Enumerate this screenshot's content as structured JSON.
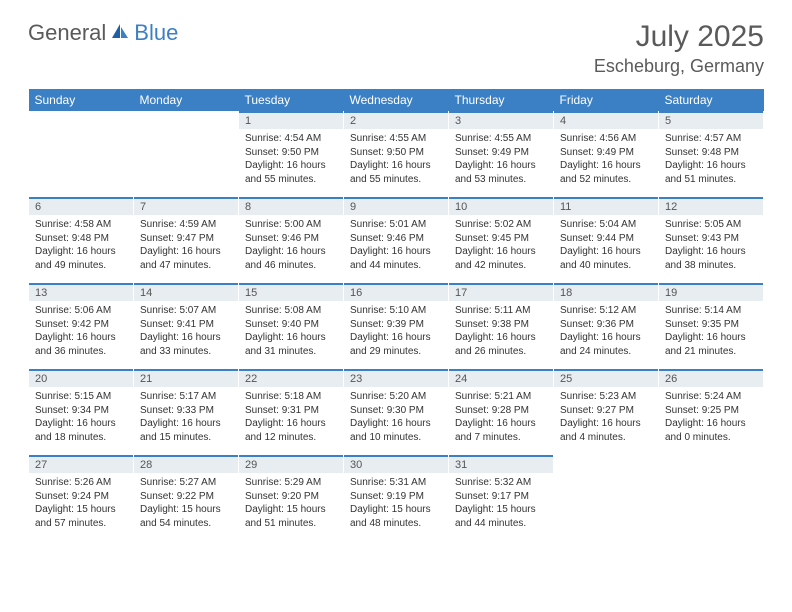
{
  "brand": {
    "part1": "General",
    "part2": "Blue"
  },
  "title": "July 2025",
  "location": "Escheburg, Germany",
  "colors": {
    "header_bg": "#3b7fc4",
    "header_text": "#ffffff",
    "daynum_bg": "#e8edf1",
    "daynum_border": "#3b7fc4",
    "body_text": "#333333",
    "title_text": "#5a5a5a"
  },
  "day_headers": [
    "Sunday",
    "Monday",
    "Tuesday",
    "Wednesday",
    "Thursday",
    "Friday",
    "Saturday"
  ],
  "weeks": [
    [
      null,
      null,
      {
        "n": "1",
        "sr": "Sunrise: 4:54 AM",
        "ss": "Sunset: 9:50 PM",
        "dl1": "Daylight: 16 hours",
        "dl2": "and 55 minutes."
      },
      {
        "n": "2",
        "sr": "Sunrise: 4:55 AM",
        "ss": "Sunset: 9:50 PM",
        "dl1": "Daylight: 16 hours",
        "dl2": "and 55 minutes."
      },
      {
        "n": "3",
        "sr": "Sunrise: 4:55 AM",
        "ss": "Sunset: 9:49 PM",
        "dl1": "Daylight: 16 hours",
        "dl2": "and 53 minutes."
      },
      {
        "n": "4",
        "sr": "Sunrise: 4:56 AM",
        "ss": "Sunset: 9:49 PM",
        "dl1": "Daylight: 16 hours",
        "dl2": "and 52 minutes."
      },
      {
        "n": "5",
        "sr": "Sunrise: 4:57 AM",
        "ss": "Sunset: 9:48 PM",
        "dl1": "Daylight: 16 hours",
        "dl2": "and 51 minutes."
      }
    ],
    [
      {
        "n": "6",
        "sr": "Sunrise: 4:58 AM",
        "ss": "Sunset: 9:48 PM",
        "dl1": "Daylight: 16 hours",
        "dl2": "and 49 minutes."
      },
      {
        "n": "7",
        "sr": "Sunrise: 4:59 AM",
        "ss": "Sunset: 9:47 PM",
        "dl1": "Daylight: 16 hours",
        "dl2": "and 47 minutes."
      },
      {
        "n": "8",
        "sr": "Sunrise: 5:00 AM",
        "ss": "Sunset: 9:46 PM",
        "dl1": "Daylight: 16 hours",
        "dl2": "and 46 minutes."
      },
      {
        "n": "9",
        "sr": "Sunrise: 5:01 AM",
        "ss": "Sunset: 9:46 PM",
        "dl1": "Daylight: 16 hours",
        "dl2": "and 44 minutes."
      },
      {
        "n": "10",
        "sr": "Sunrise: 5:02 AM",
        "ss": "Sunset: 9:45 PM",
        "dl1": "Daylight: 16 hours",
        "dl2": "and 42 minutes."
      },
      {
        "n": "11",
        "sr": "Sunrise: 5:04 AM",
        "ss": "Sunset: 9:44 PM",
        "dl1": "Daylight: 16 hours",
        "dl2": "and 40 minutes."
      },
      {
        "n": "12",
        "sr": "Sunrise: 5:05 AM",
        "ss": "Sunset: 9:43 PM",
        "dl1": "Daylight: 16 hours",
        "dl2": "and 38 minutes."
      }
    ],
    [
      {
        "n": "13",
        "sr": "Sunrise: 5:06 AM",
        "ss": "Sunset: 9:42 PM",
        "dl1": "Daylight: 16 hours",
        "dl2": "and 36 minutes."
      },
      {
        "n": "14",
        "sr": "Sunrise: 5:07 AM",
        "ss": "Sunset: 9:41 PM",
        "dl1": "Daylight: 16 hours",
        "dl2": "and 33 minutes."
      },
      {
        "n": "15",
        "sr": "Sunrise: 5:08 AM",
        "ss": "Sunset: 9:40 PM",
        "dl1": "Daylight: 16 hours",
        "dl2": "and 31 minutes."
      },
      {
        "n": "16",
        "sr": "Sunrise: 5:10 AM",
        "ss": "Sunset: 9:39 PM",
        "dl1": "Daylight: 16 hours",
        "dl2": "and 29 minutes."
      },
      {
        "n": "17",
        "sr": "Sunrise: 5:11 AM",
        "ss": "Sunset: 9:38 PM",
        "dl1": "Daylight: 16 hours",
        "dl2": "and 26 minutes."
      },
      {
        "n": "18",
        "sr": "Sunrise: 5:12 AM",
        "ss": "Sunset: 9:36 PM",
        "dl1": "Daylight: 16 hours",
        "dl2": "and 24 minutes."
      },
      {
        "n": "19",
        "sr": "Sunrise: 5:14 AM",
        "ss": "Sunset: 9:35 PM",
        "dl1": "Daylight: 16 hours",
        "dl2": "and 21 minutes."
      }
    ],
    [
      {
        "n": "20",
        "sr": "Sunrise: 5:15 AM",
        "ss": "Sunset: 9:34 PM",
        "dl1": "Daylight: 16 hours",
        "dl2": "and 18 minutes."
      },
      {
        "n": "21",
        "sr": "Sunrise: 5:17 AM",
        "ss": "Sunset: 9:33 PM",
        "dl1": "Daylight: 16 hours",
        "dl2": "and 15 minutes."
      },
      {
        "n": "22",
        "sr": "Sunrise: 5:18 AM",
        "ss": "Sunset: 9:31 PM",
        "dl1": "Daylight: 16 hours",
        "dl2": "and 12 minutes."
      },
      {
        "n": "23",
        "sr": "Sunrise: 5:20 AM",
        "ss": "Sunset: 9:30 PM",
        "dl1": "Daylight: 16 hours",
        "dl2": "and 10 minutes."
      },
      {
        "n": "24",
        "sr": "Sunrise: 5:21 AM",
        "ss": "Sunset: 9:28 PM",
        "dl1": "Daylight: 16 hours",
        "dl2": "and 7 minutes."
      },
      {
        "n": "25",
        "sr": "Sunrise: 5:23 AM",
        "ss": "Sunset: 9:27 PM",
        "dl1": "Daylight: 16 hours",
        "dl2": "and 4 minutes."
      },
      {
        "n": "26",
        "sr": "Sunrise: 5:24 AM",
        "ss": "Sunset: 9:25 PM",
        "dl1": "Daylight: 16 hours",
        "dl2": "and 0 minutes."
      }
    ],
    [
      {
        "n": "27",
        "sr": "Sunrise: 5:26 AM",
        "ss": "Sunset: 9:24 PM",
        "dl1": "Daylight: 15 hours",
        "dl2": "and 57 minutes."
      },
      {
        "n": "28",
        "sr": "Sunrise: 5:27 AM",
        "ss": "Sunset: 9:22 PM",
        "dl1": "Daylight: 15 hours",
        "dl2": "and 54 minutes."
      },
      {
        "n": "29",
        "sr": "Sunrise: 5:29 AM",
        "ss": "Sunset: 9:20 PM",
        "dl1": "Daylight: 15 hours",
        "dl2": "and 51 minutes."
      },
      {
        "n": "30",
        "sr": "Sunrise: 5:31 AM",
        "ss": "Sunset: 9:19 PM",
        "dl1": "Daylight: 15 hours",
        "dl2": "and 48 minutes."
      },
      {
        "n": "31",
        "sr": "Sunrise: 5:32 AM",
        "ss": "Sunset: 9:17 PM",
        "dl1": "Daylight: 15 hours",
        "dl2": "and 44 minutes."
      },
      null,
      null
    ]
  ]
}
